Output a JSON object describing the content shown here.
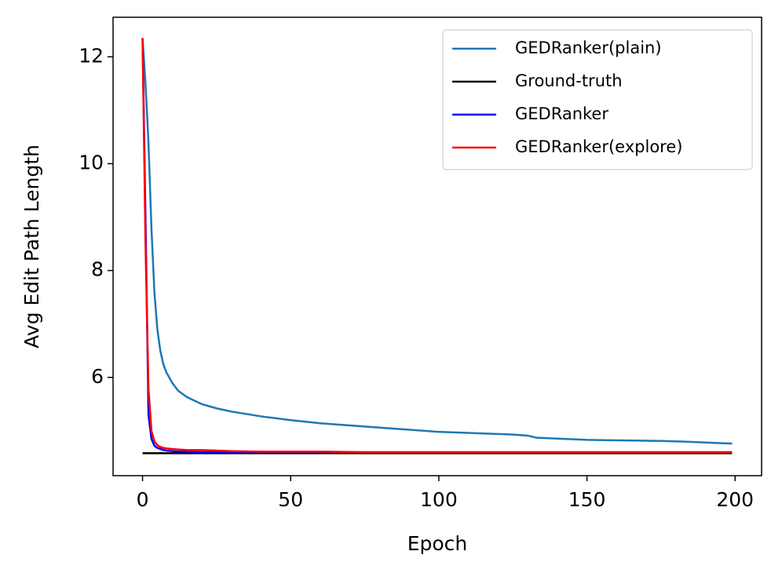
{
  "chart_data": {
    "type": "line",
    "xlabel": "Epoch",
    "ylabel": "Avg Edit Path Length",
    "x": [
      0,
      1,
      2,
      3,
      4,
      5,
      6,
      7,
      8,
      10,
      12,
      15,
      20,
      25,
      30,
      40,
      50,
      60,
      75,
      100,
      125,
      130,
      133,
      150,
      175,
      182,
      199
    ],
    "series": [
      {
        "name": "GEDRanker(plain)",
        "color": "#1f77b4",
        "values": [
          12.35,
          11.5,
          10.4,
          8.8,
          7.6,
          6.9,
          6.5,
          6.25,
          6.1,
          5.9,
          5.75,
          5.63,
          5.5,
          5.42,
          5.36,
          5.27,
          5.2,
          5.14,
          5.08,
          4.98,
          4.93,
          4.91,
          4.87,
          4.83,
          4.81,
          4.8,
          4.76
        ]
      },
      {
        "name": "Ground-truth",
        "color": "#000000",
        "values": [
          4.58,
          4.58,
          4.58,
          4.58,
          4.58,
          4.58,
          4.58,
          4.58,
          4.58,
          4.58,
          4.58,
          4.58,
          4.58,
          4.58,
          4.58,
          4.58,
          4.58,
          4.58,
          4.58,
          4.58,
          4.58,
          4.58,
          4.58,
          4.58,
          4.58,
          4.58,
          4.58
        ]
      },
      {
        "name": "GEDRanker",
        "color": "#0000ff",
        "values": [
          12.35,
          9.0,
          5.3,
          4.85,
          4.72,
          4.68,
          4.66,
          4.64,
          4.63,
          4.62,
          4.61,
          4.61,
          4.6,
          4.6,
          4.6,
          4.6,
          4.6,
          4.6,
          4.59,
          4.59,
          4.59,
          4.59,
          4.59,
          4.59,
          4.59,
          4.59,
          4.59
        ]
      },
      {
        "name": "GEDRanker(explore)",
        "color": "#ff0000",
        "values": [
          12.35,
          8.5,
          5.8,
          5.0,
          4.8,
          4.73,
          4.7,
          4.68,
          4.67,
          4.66,
          4.65,
          4.64,
          4.64,
          4.63,
          4.62,
          4.61,
          4.61,
          4.61,
          4.6,
          4.6,
          4.6,
          4.6,
          4.6,
          4.6,
          4.6,
          4.6,
          4.6
        ]
      }
    ],
    "xlim": [
      -9.95,
      208.95
    ],
    "ylim": [
      4.16,
      12.74
    ],
    "xticks": [
      0,
      50,
      100,
      150,
      200
    ],
    "yticks": [
      6,
      8,
      10,
      12
    ],
    "legend": "upper right"
  }
}
